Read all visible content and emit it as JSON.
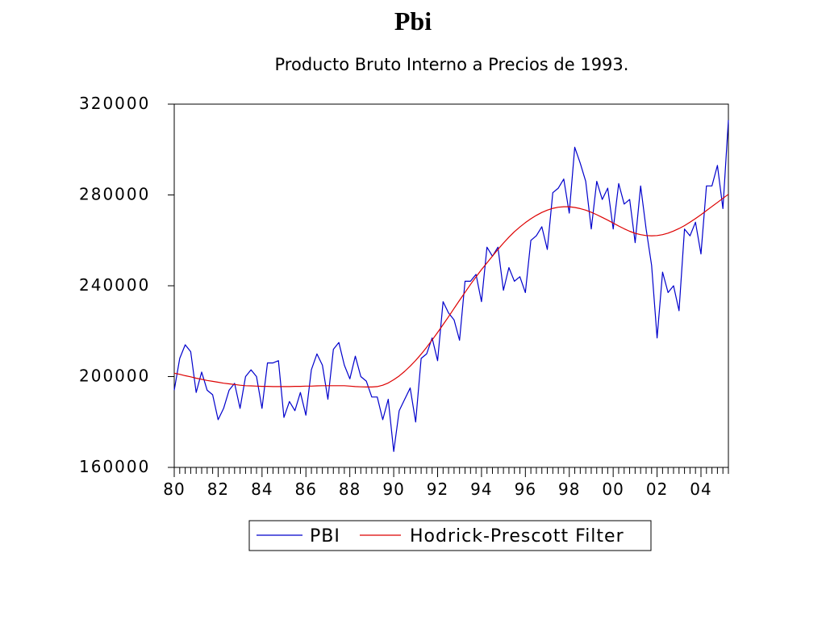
{
  "slide": {
    "title": "Pbi"
  },
  "chart_data": {
    "type": "line",
    "title": "Producto Bruto Interno a Precios de 1993.",
    "xlabel": "",
    "ylabel": "",
    "ylim": [
      160000,
      320000
    ],
    "xlim": [
      1980.0,
      2005.25
    ],
    "y_ticks": [
      160000,
      200000,
      240000,
      280000,
      320000
    ],
    "y_tick_labels": [
      "160000",
      "200000",
      "240000",
      "280000",
      "320000"
    ],
    "x_ticks": [
      1980,
      1982,
      1984,
      1986,
      1988,
      1990,
      1992,
      1994,
      1996,
      1998,
      2000,
      2002,
      2004
    ],
    "x_tick_labels": [
      "80",
      "82",
      "84",
      "86",
      "88",
      "90",
      "92",
      "94",
      "96",
      "98",
      "00",
      "02",
      "04"
    ],
    "frequency": "quarterly",
    "legend_position": "bottom",
    "grid": false,
    "series": [
      {
        "name": "PBI",
        "color": "#0000cc",
        "start": "1980Q1",
        "values": [
          194000,
          208000,
          214000,
          211000,
          193000,
          202000,
          194000,
          192000,
          181000,
          186000,
          194000,
          197000,
          186000,
          200000,
          203000,
          200000,
          186000,
          206000,
          206000,
          207000,
          182000,
          189000,
          185000,
          193000,
          183000,
          203000,
          210000,
          205000,
          190000,
          212000,
          215000,
          205000,
          199000,
          209000,
          200000,
          198000,
          191000,
          191000,
          181000,
          190000,
          167000,
          185000,
          190000,
          195000,
          180000,
          208000,
          210000,
          217000,
          207000,
          233000,
          228000,
          225000,
          216000,
          242000,
          242000,
          245000,
          233000,
          257000,
          253000,
          257000,
          238000,
          248000,
          242000,
          244000,
          237000,
          260000,
          262000,
          266000,
          256000,
          281000,
          283000,
          287000,
          272000,
          301000,
          294000,
          286000,
          265000,
          286000,
          278000,
          283000,
          265000,
          285000,
          276000,
          278000,
          259000,
          284000,
          265000,
          249000,
          217000,
          246000,
          237000,
          240000,
          229000,
          265000,
          262000,
          268000,
          254000,
          284000,
          284000,
          293000,
          274000,
          313000
        ]
      },
      {
        "name": "Hodrick-Prescott Filter",
        "color": "#dd0000",
        "start": "1980Q1",
        "values": [
          201500,
          201000,
          200400,
          199900,
          199300,
          198800,
          198300,
          197900,
          197500,
          197100,
          196800,
          196500,
          196200,
          196000,
          195900,
          195800,
          195700,
          195700,
          195600,
          195600,
          195600,
          195600,
          195700,
          195700,
          195800,
          195800,
          195900,
          196000,
          196000,
          196000,
          196000,
          196000,
          195800,
          195600,
          195500,
          195400,
          195400,
          195600,
          196200,
          197200,
          198600,
          200300,
          202300,
          204600,
          207100,
          209900,
          212900,
          216100,
          219400,
          222900,
          226400,
          230000,
          233600,
          237100,
          240600,
          243900,
          247100,
          250100,
          253100,
          256000,
          258800,
          261400,
          263800,
          265900,
          267800,
          269500,
          271000,
          272300,
          273300,
          274100,
          274600,
          274800,
          274800,
          274500,
          274000,
          273300,
          272400,
          271300,
          270100,
          268900,
          267600,
          266300,
          265100,
          264000,
          263100,
          262500,
          262100,
          262000,
          262100,
          262500,
          263200,
          264100,
          265200,
          266500,
          268000,
          269600,
          271300,
          273100,
          274900,
          276700,
          278500,
          280300
        ]
      }
    ]
  }
}
